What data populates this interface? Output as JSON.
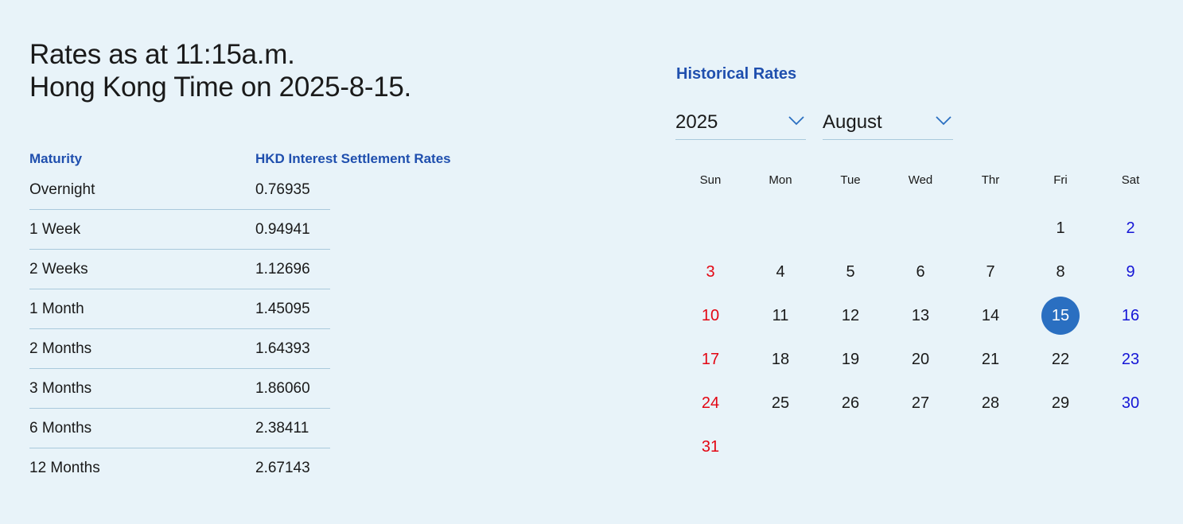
{
  "heading": {
    "line1": "Rates as at 11:15a.m.",
    "line2": "Hong Kong Time on 2025-8-15."
  },
  "rates": {
    "header_maturity": "Maturity",
    "header_rate": "HKD Interest Settlement Rates",
    "rows": [
      {
        "maturity": "Overnight",
        "rate": "0.76935"
      },
      {
        "maturity": "1 Week",
        "rate": "0.94941"
      },
      {
        "maturity": "2 Weeks",
        "rate": "1.12696"
      },
      {
        "maturity": "1 Month",
        "rate": "1.45095"
      },
      {
        "maturity": "2 Months",
        "rate": "1.64393"
      },
      {
        "maturity": "3 Months",
        "rate": "1.86060"
      },
      {
        "maturity": "6 Months",
        "rate": "2.38411"
      },
      {
        "maturity": "12 Months",
        "rate": "2.67143"
      }
    ]
  },
  "historical": {
    "title": "Historical Rates",
    "year_selected": "2025",
    "month_selected": "August",
    "weekdays": [
      "Sun",
      "Mon",
      "Tue",
      "Wed",
      "Thr",
      "Fri",
      "Sat"
    ],
    "weeks": [
      [
        "",
        "",
        "",
        "",
        "",
        "1",
        "2"
      ],
      [
        "3",
        "4",
        "5",
        "6",
        "7",
        "8",
        "9"
      ],
      [
        "10",
        "11",
        "12",
        "13",
        "14",
        "15",
        "16"
      ],
      [
        "17",
        "18",
        "19",
        "20",
        "21",
        "22",
        "23"
      ],
      [
        "24",
        "25",
        "26",
        "27",
        "28",
        "29",
        "30"
      ],
      [
        "31",
        "",
        "",
        "",
        "",
        "",
        ""
      ]
    ],
    "selected_day": "15"
  },
  "colors": {
    "background": "#e8f3f9",
    "accent": "#1f4fae",
    "selected": "#2a6fc1",
    "sunday": "#e30613",
    "saturday": "#1515d6"
  },
  "icons": {
    "dropdown": "chevron-down-icon"
  }
}
